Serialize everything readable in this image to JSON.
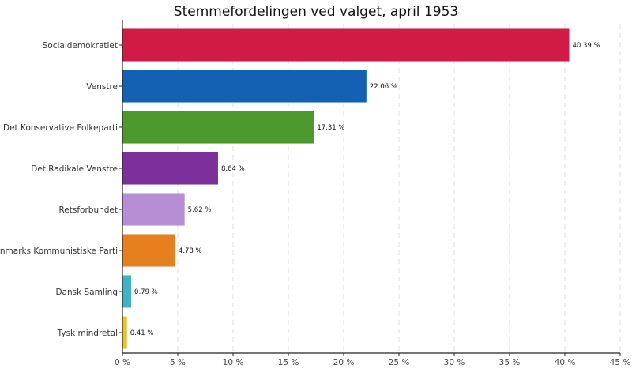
{
  "chart_data": {
    "type": "bar",
    "orientation": "horizontal",
    "title": "Stemmefordelingen ved valget, april 1953",
    "xlabel": "",
    "ylabel": "",
    "xlim": [
      0,
      45
    ],
    "grid": true,
    "x_ticks": [
      "0 %",
      "5 %",
      "10 %",
      "15 %",
      "20 %",
      "25 %",
      "30 %",
      "35 %",
      "40 %",
      "45 %"
    ],
    "x_tick_values": [
      0,
      5,
      10,
      15,
      20,
      25,
      30,
      35,
      40,
      45
    ],
    "categories": [
      "Socialdemokratiet",
      "Venstre",
      "Det Konservative Folkeparti",
      "Det Radikale Venstre",
      "Retsforbundet",
      "Danmarks Kommunistiske Parti",
      "Dansk Samling",
      "Tysk mindretal"
    ],
    "values": [
      40.39,
      22.06,
      17.31,
      8.64,
      5.62,
      4.78,
      0.79,
      0.41
    ],
    "value_labels": [
      "40.39 %",
      "22.06 %",
      "17.31 %",
      "8.64 %",
      "5.62 %",
      "4.78 %",
      "0.79 %",
      "0.41 %"
    ],
    "colors": [
      "#d11a45",
      "#1461b4",
      "#4c9a2e",
      "#7d2f9b",
      "#b68ed4",
      "#e6801e",
      "#3fb3c2",
      "#e8c22a"
    ]
  }
}
